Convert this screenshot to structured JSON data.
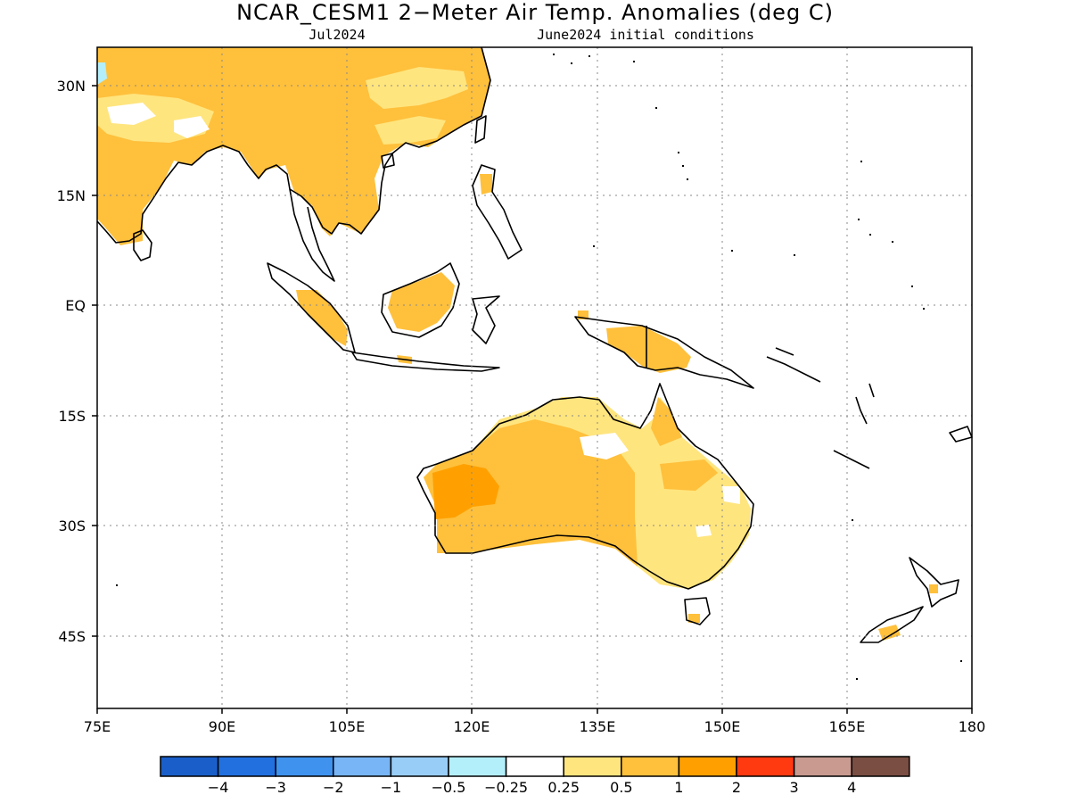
{
  "header": {
    "title": "NCAR_CESM1 2−Meter Air Temp. Anomalies (deg C)",
    "valid_label": "Jul2024",
    "ic_label": "June2024 initial conditions"
  },
  "map": {
    "lon_range": [
      75,
      180
    ],
    "lat_range": [
      -54,
      35
    ],
    "lon_ticks": [
      "75E",
      "90E",
      "105E",
      "120E",
      "135E",
      "150E",
      "165E",
      "180"
    ],
    "lat_ticks": [
      "30N",
      "15N",
      "EQ",
      "15S",
      "30S",
      "45S"
    ],
    "gridlines": "dotted"
  },
  "colorbar": {
    "colors": [
      "#1a5fc9",
      "#2270e0",
      "#3f92ee",
      "#77b5f6",
      "#98cdf7",
      "#b3eefb",
      "#ffffff",
      "#ffe57e",
      "#ffc03c",
      "#ffa000",
      "#ff3a10",
      "#c89a90",
      "#7a4e43"
    ],
    "labels": [
      "−4",
      "−3",
      "−2",
      "−1",
      "−0.5",
      "−0.25",
      "0.25",
      "0.5",
      "1",
      "2",
      "3",
      "4"
    ]
  }
}
